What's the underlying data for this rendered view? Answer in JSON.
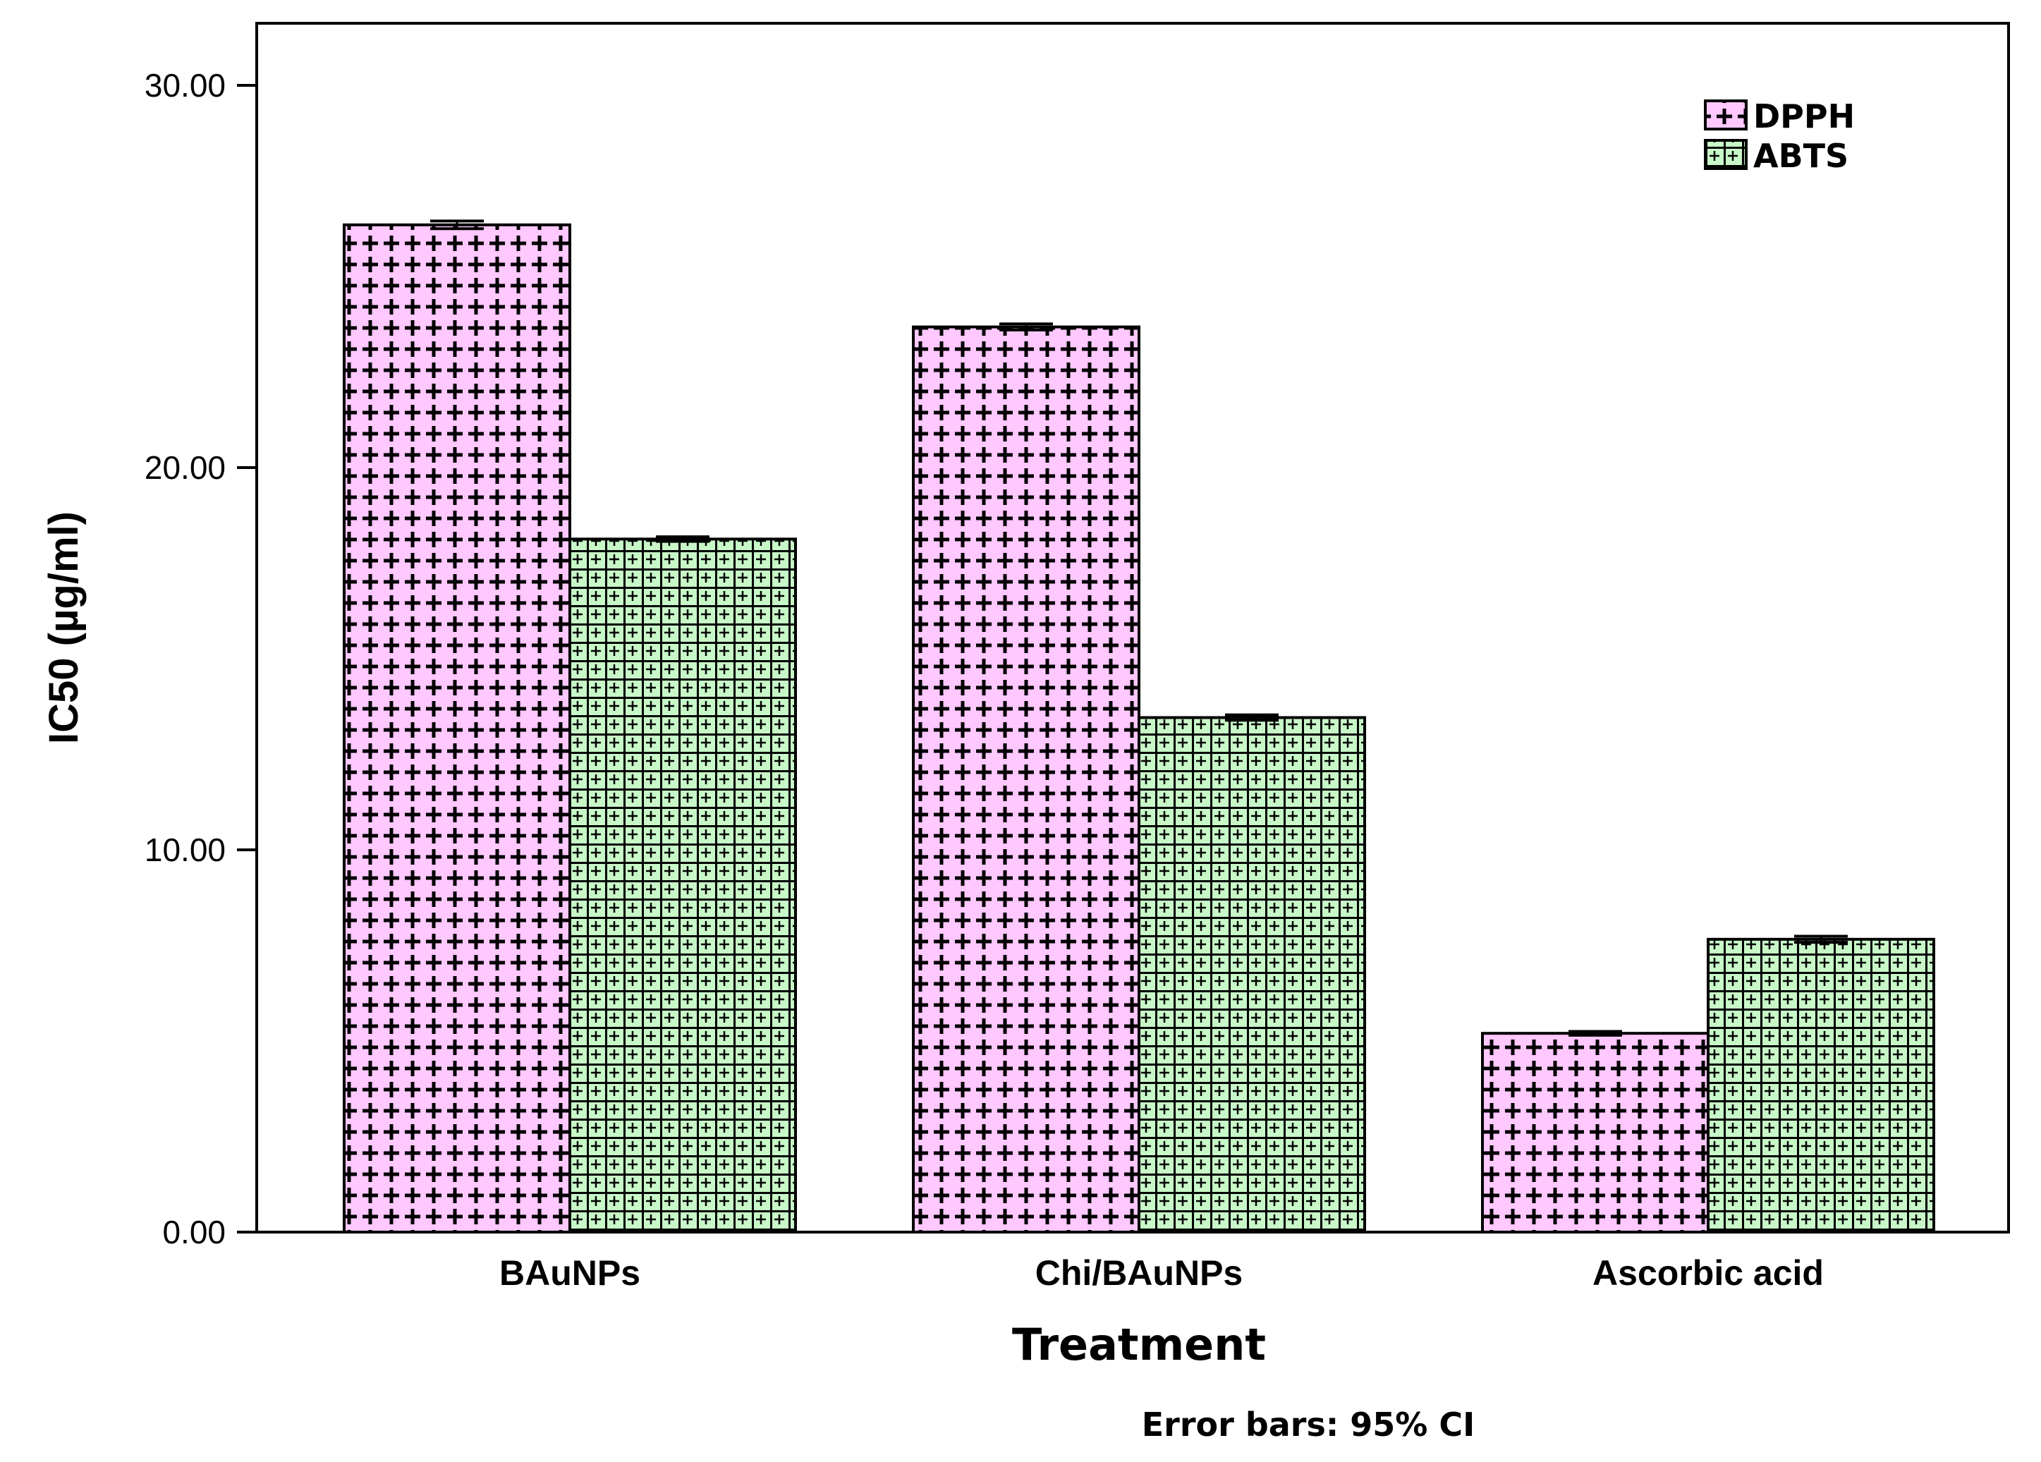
{
  "chart_data": {
    "type": "bar",
    "categories": [
      "BAuNPs",
      "Chi/BAuNPs",
      "Ascorbic acid"
    ],
    "series": [
      {
        "name": "DPPH",
        "values": [
          26.35,
          23.68,
          5.2
        ],
        "ci_half": [
          0.1,
          0.08,
          0.05
        ],
        "color": "#ffc8ff"
      },
      {
        "name": "ABTS",
        "values": [
          18.13,
          13.46,
          7.66
        ],
        "ci_half": [
          0.06,
          0.07,
          0.08
        ],
        "color": "#c8f7c8"
      }
    ],
    "xlabel": "Treatment",
    "ylabel": "IC50 (µg/ml)",
    "ylim": [
      0,
      30
    ],
    "yticks": [
      "0.00",
      "10.00",
      "20.00",
      "30.00"
    ],
    "ytick_values": [
      0,
      10,
      20,
      30
    ],
    "grid": false,
    "legend_position": "top-right",
    "footnote": "Error bars: 95% CI"
  }
}
